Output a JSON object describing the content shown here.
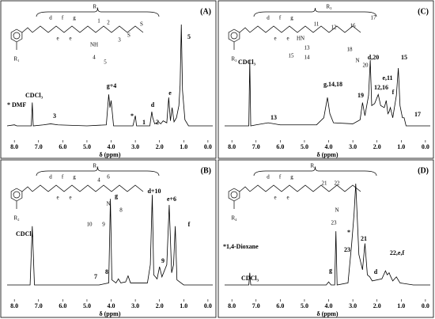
{
  "chart_data": [
    {
      "type": "line",
      "label": "(A)",
      "xlabel": "δ (ppm)",
      "color": "#000000",
      "xlim": [
        8.3,
        -0.2
      ],
      "ylim": [
        0,
        100
      ],
      "xticks": [
        {
          "value": 8,
          "label": "8.0"
        },
        {
          "value": 7,
          "label": "7.0"
        },
        {
          "value": 6,
          "label": "6.0"
        },
        {
          "value": 5,
          "label": "5.0"
        },
        {
          "value": 4,
          "label": "4.0"
        },
        {
          "value": 3,
          "label": "3.0"
        },
        {
          "value": 2,
          "label": "2.0"
        },
        {
          "value": 1,
          "label": "1.0"
        },
        {
          "value": 0,
          "label": "0.0"
        }
      ],
      "x": [
        8.3,
        8.0,
        7.9,
        7.3,
        7.26,
        7.22,
        6.8,
        6.5,
        6.2,
        5.0,
        4.2,
        4.1,
        4.05,
        4.0,
        3.9,
        3.1,
        3.0,
        2.95,
        2.4,
        2.32,
        2.28,
        2.2,
        2.05,
        1.95,
        1.85,
        1.7,
        1.62,
        1.55,
        1.48,
        1.4,
        1.3,
        1.2,
        1.15,
        1.1,
        1.05,
        0.95,
        0.8,
        0.0,
        -0.2
      ],
      "values": [
        0,
        1,
        0,
        0,
        23,
        0,
        1,
        2,
        1,
        0,
        1,
        31,
        18,
        25,
        0,
        0,
        10,
        0,
        0,
        14,
        8,
        2,
        4,
        2,
        5,
        3,
        28,
        5,
        18,
        4,
        8,
        20,
        40,
        100,
        35,
        6,
        0,
        0,
        0
      ],
      "annotations": [
        "* DMF",
        "CDCl₃",
        "3",
        "g+4",
        "d",
        "*",
        "1",
        "2",
        "e",
        "5"
      ],
      "structure_labels": [
        "R₁",
        "R₁",
        "d",
        "f",
        "g",
        "e",
        "e",
        "1",
        "2",
        "3",
        "NH",
        "4",
        "5",
        "S",
        "S"
      ]
    },
    {
      "type": "line",
      "label": "(B)",
      "xlabel": "δ (ppm)",
      "color": "#000000",
      "xlim": [
        8.3,
        -0.2
      ],
      "ylim": [
        0,
        100
      ],
      "xticks": [
        {
          "value": 8,
          "label": "8.0"
        },
        {
          "value": 7,
          "label": "7.0"
        },
        {
          "value": 6,
          "label": "6.0"
        },
        {
          "value": 5,
          "label": "5.0"
        },
        {
          "value": 4,
          "label": "4.0"
        },
        {
          "value": 3,
          "label": "3.0"
        },
        {
          "value": 2,
          "label": "2.0"
        },
        {
          "value": 1,
          "label": "1.0"
        },
        {
          "value": 0,
          "label": "0.0"
        }
      ],
      "x": [
        8.3,
        8.0,
        7.35,
        7.26,
        7.17,
        6.0,
        4.5,
        4.1,
        4.03,
        3.97,
        3.8,
        3.7,
        3.6,
        3.4,
        3.3,
        3.2,
        2.5,
        2.38,
        2.3,
        2.24,
        2.1,
        2.0,
        1.9,
        1.7,
        1.6,
        1.5,
        1.42,
        1.35,
        1.28,
        1.0,
        0.0,
        -0.2
      ],
      "values": [
        0,
        0,
        0,
        58,
        0,
        0,
        0,
        2,
        85,
        5,
        2,
        6,
        2,
        3,
        9,
        2,
        2,
        20,
        89,
        10,
        6,
        18,
        8,
        20,
        79,
        12,
        20,
        58,
        5,
        0,
        0,
        0
      ],
      "annotations": [
        "CDCl₃",
        "g",
        "7",
        "8",
        "d+10",
        "9",
        "e+6",
        "f"
      ],
      "structure_labels": [
        "R₂",
        "R₂",
        "d",
        "f",
        "g",
        "e",
        "e",
        "4",
        "6",
        "N",
        "8",
        "9",
        "10"
      ]
    },
    {
      "type": "line",
      "label": "(C)",
      "xlabel": "δ (ppm)",
      "color": "#000000",
      "xlim": [
        8.3,
        -0.2
      ],
      "ylim": [
        0,
        100
      ],
      "xticks": [
        {
          "value": 8,
          "label": "8.0"
        },
        {
          "value": 7,
          "label": "7.0"
        },
        {
          "value": 6,
          "label": "6.0"
        },
        {
          "value": 5,
          "label": "5.0"
        },
        {
          "value": 4,
          "label": "4.0"
        },
        {
          "value": 3,
          "label": "3.0"
        },
        {
          "value": 2,
          "label": "2.0"
        },
        {
          "value": 1,
          "label": "1.0"
        },
        {
          "value": 0,
          "label": "0.0"
        }
      ],
      "x": [
        8.3,
        8.0,
        7.3,
        7.26,
        7.22,
        7.0,
        6.5,
        6.0,
        4.5,
        4.2,
        4.05,
        3.95,
        3.8,
        3.0,
        2.7,
        2.6,
        2.5,
        2.35,
        2.28,
        2.22,
        2.1,
        1.95,
        1.85,
        1.7,
        1.62,
        1.55,
        1.5,
        1.45,
        1.35,
        1.2,
        1.12,
        1.05,
        0.95,
        0.88,
        0.8,
        0.0,
        -0.2
      ],
      "values": [
        0,
        0,
        0,
        65,
        0,
        1,
        3,
        1,
        1,
        8,
        28,
        12,
        3,
        2,
        6,
        23,
        10,
        30,
        65,
        20,
        22,
        31,
        20,
        18,
        25,
        12,
        14,
        18,
        8,
        30,
        57,
        20,
        8,
        8,
        0,
        0,
        0
      ],
      "annotations": [
        "CDCl₃",
        "13",
        "g,14,18",
        "19",
        "d,20",
        "12,16",
        "e,11",
        "f",
        "15",
        "17"
      ],
      "structure_labels": [
        "R₃",
        "R₃",
        "d",
        "f",
        "g",
        "e",
        "e",
        "11",
        "12",
        "16",
        "17",
        "HN",
        "13",
        "14",
        "15",
        "18",
        "20",
        "N"
      ]
    },
    {
      "type": "line",
      "label": "(D)",
      "xlabel": "δ (ppm)",
      "color": "#000000",
      "xlim": [
        8.3,
        -0.2
      ],
      "ylim": [
        0,
        100
      ],
      "xticks": [
        {
          "value": 8,
          "label": "8.0"
        },
        {
          "value": 7,
          "label": "7.0"
        },
        {
          "value": 6,
          "label": "6.0"
        },
        {
          "value": 5,
          "label": "5.0"
        },
        {
          "value": 4,
          "label": "4.0"
        },
        {
          "value": 3,
          "label": "3.0"
        },
        {
          "value": 2,
          "label": "2.0"
        },
        {
          "value": 1,
          "label": "1.0"
        },
        {
          "value": 0,
          "label": "0.0"
        }
      ],
      "x": [
        8.3,
        8.0,
        7.3,
        7.26,
        7.22,
        6.0,
        4.1,
        4.0,
        3.9,
        3.75,
        3.7,
        3.65,
        3.2,
        3.05,
        2.95,
        2.88,
        2.75,
        2.6,
        2.5,
        2.4,
        2.3,
        2.2,
        1.8,
        1.65,
        1.58,
        1.5,
        1.45,
        1.35,
        1.2,
        1.05,
        0.5,
        0.0,
        -0.2
      ],
      "values": [
        0,
        0,
        0,
        12,
        0,
        0,
        0,
        3,
        0,
        0,
        53,
        0,
        2,
        40,
        70,
        100,
        30,
        15,
        41,
        10,
        8,
        4,
        6,
        14,
        10,
        12,
        9,
        4,
        8,
        2,
        0,
        0,
        0
      ],
      "annotations": [
        "*1,4-Dioxane",
        "*",
        "23",
        "21",
        "CDCl₃",
        "g",
        "d",
        "22,e,f"
      ],
      "structure_labels": [
        "R₄",
        "R₄",
        "d",
        "f",
        "g",
        "e",
        "e",
        "21",
        "22",
        "N",
        "23"
      ]
    }
  ]
}
